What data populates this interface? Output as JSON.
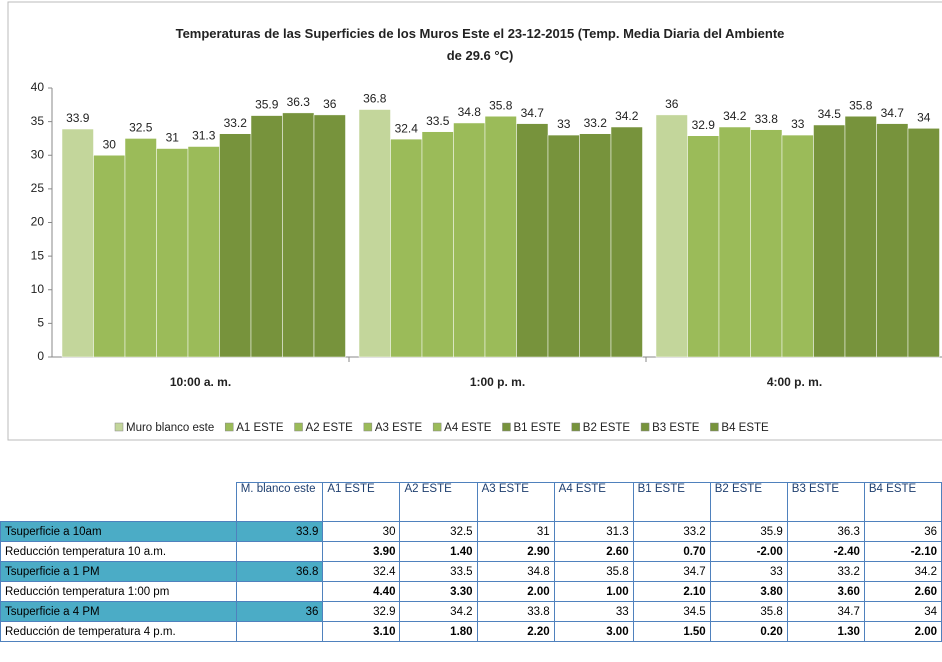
{
  "chart_data": {
    "type": "bar",
    "title": "Temperaturas de las Superficies de los Muros Este el  23-12-2015  (Temp. Media Diaria del Ambiente de 29.6 °C)",
    "categories": [
      "10:00 a. m.",
      "1:00 p. m.",
      "4:00 p. m."
    ],
    "series": [
      {
        "name": "Muro blanco este",
        "color": "#c3d69b",
        "values": [
          33.9,
          36.8,
          36
        ]
      },
      {
        "name": "A1 ESTE",
        "color": "#9bbb59",
        "values": [
          30,
          32.4,
          32.9
        ]
      },
      {
        "name": "A2 ESTE",
        "color": "#9bbb59",
        "values": [
          32.5,
          33.5,
          34.2
        ]
      },
      {
        "name": "A3 ESTE",
        "color": "#9bbb59",
        "values": [
          31,
          34.8,
          33.8
        ]
      },
      {
        "name": "A4 ESTE",
        "color": "#9bbb59",
        "values": [
          31.3,
          35.8,
          33
        ]
      },
      {
        "name": "B1 ESTE",
        "color": "#77933c",
        "values": [
          33.2,
          34.7,
          34.5
        ]
      },
      {
        "name": "B2 ESTE",
        "color": "#77933c",
        "values": [
          35.9,
          33,
          35.8
        ]
      },
      {
        "name": "B3 ESTE",
        "color": "#77933c",
        "values": [
          36.3,
          33.2,
          34.7
        ]
      },
      {
        "name": "B4 ESTE",
        "color": "#77933c",
        "values": [
          36,
          34.2,
          34
        ]
      }
    ],
    "ylim": [
      0,
      40
    ],
    "yticks": [
      0,
      5,
      10,
      15,
      20,
      25,
      30,
      35,
      40
    ],
    "legend": "bottom"
  },
  "table": {
    "header": [
      null,
      "M. blanco este",
      "A1 ESTE",
      "A2 ESTE",
      "A3 ESTE",
      "A4 ESTE",
      "B1 ESTE",
      "B2 ESTE",
      "B3 ESTE",
      "B4 ESTE"
    ],
    "rows": [
      [
        "Tsuperficie a  10am",
        "33.9",
        "30",
        "32.5",
        "31",
        "31.3",
        "33.2",
        "35.9",
        "36.3",
        "36"
      ],
      [
        "Reducción temperatura 10 a.m.",
        null,
        "3.90",
        "1.40",
        "2.90",
        "2.60",
        "0.70",
        "-2.00",
        "-2.40",
        "-2.10"
      ],
      [
        "Tsuperficie a  1 PM",
        "36.8",
        "32.4",
        "33.5",
        "34.8",
        "35.8",
        "34.7",
        "33",
        "33.2",
        "34.2"
      ],
      [
        "Reducción temperatura 1:00 pm",
        null,
        "4.40",
        "3.30",
        "2.00",
        "1.00",
        "2.10",
        "3.80",
        "3.60",
        "2.60"
      ],
      [
        "Tsuperficie a  4 PM",
        "36",
        "32.9",
        "34.2",
        "33.8",
        "33",
        "34.5",
        "35.8",
        "34.7",
        "34"
      ],
      [
        "Reducción de temperatura 4 p.m.",
        null,
        "3.10",
        "1.80",
        "2.20",
        "3.00",
        "1.50",
        "0.20",
        "1.30",
        "2.00"
      ]
    ]
  }
}
